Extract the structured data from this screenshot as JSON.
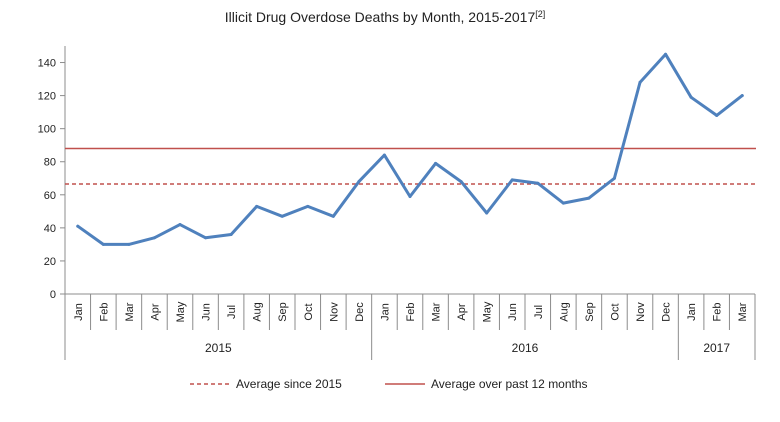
{
  "chart_data": {
    "type": "line",
    "title": "Illicit Drug Overdose Deaths by Month, 2015-2017",
    "title_sup": "[2]",
    "categories": [
      "Jan",
      "Feb",
      "Mar",
      "Apr",
      "May",
      "Jun",
      "Jul",
      "Aug",
      "Sep",
      "Oct",
      "Nov",
      "Dec",
      "Jan",
      "Feb",
      "Mar",
      "Apr",
      "May",
      "Jun",
      "Jul",
      "Aug",
      "Sep",
      "Oct",
      "Nov",
      "Dec",
      "Jan",
      "Feb",
      "Mar"
    ],
    "years": [
      {
        "label": "2015",
        "months": 12
      },
      {
        "label": "2016",
        "months": 12
      },
      {
        "label": "2017",
        "months": 3
      }
    ],
    "series": [
      {
        "values": [
          41,
          30,
          30,
          34,
          42,
          34,
          36,
          53,
          47,
          53,
          47,
          68,
          84,
          59,
          79,
          68,
          49,
          69,
          67,
          55,
          58,
          70,
          128,
          145,
          119,
          108,
          120
        ],
        "color": "#4f81bd"
      }
    ],
    "reference_lines": [
      {
        "name": "Average since 2015",
        "value": 66.5,
        "style": "dashed",
        "color": "#c0504d"
      },
      {
        "name": "Average over past 12 months",
        "value": 88,
        "style": "solid",
        "color": "#c0504d"
      }
    ],
    "ylim": [
      0,
      150
    ],
    "yticks": [
      0,
      20,
      40,
      60,
      80,
      100,
      120,
      140
    ],
    "grid": false,
    "legend_position": "bottom"
  }
}
